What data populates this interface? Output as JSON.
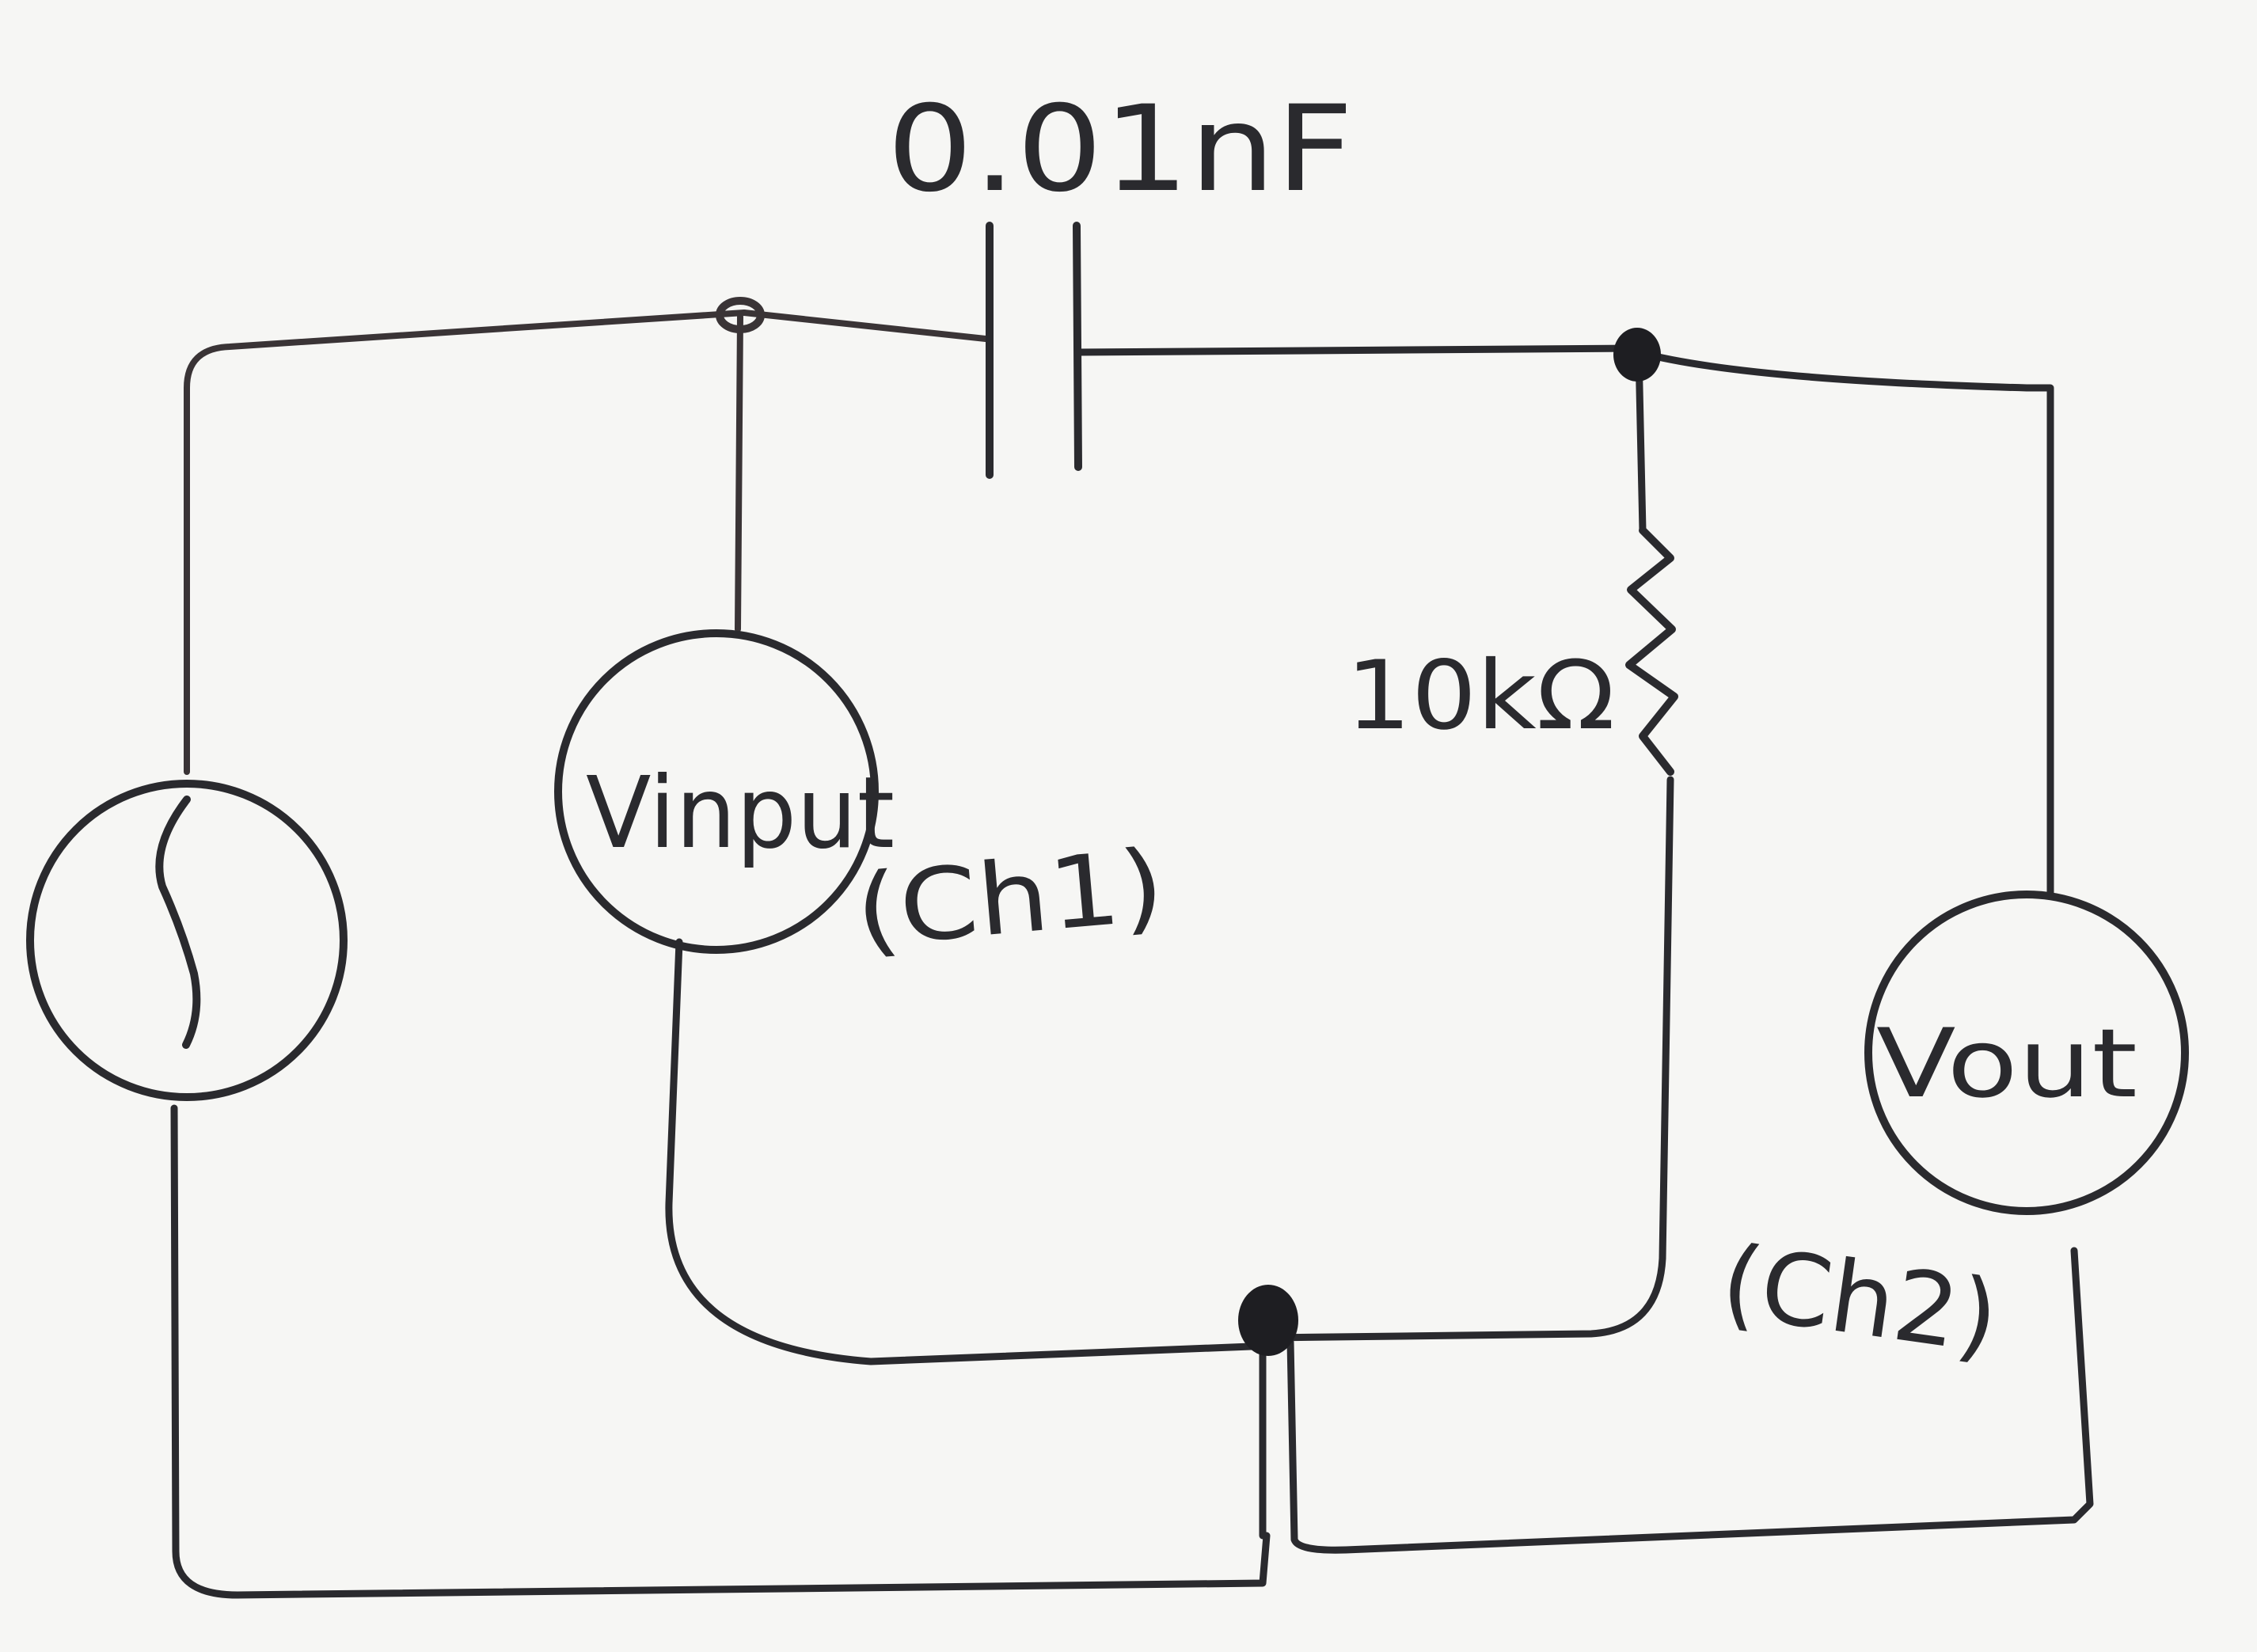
{
  "diagram": {
    "capacitor": {
      "label": "0.01nF"
    },
    "resistor": {
      "label": "10kΩ"
    },
    "voltmeter_input": {
      "label": "Vinput",
      "channel": "(Ch1)"
    },
    "voltmeter_output": {
      "label": "Vout",
      "channel": "(Ch2)"
    },
    "ink_color": "#2a2a2e",
    "paper_color": "#f6f6f4"
  }
}
